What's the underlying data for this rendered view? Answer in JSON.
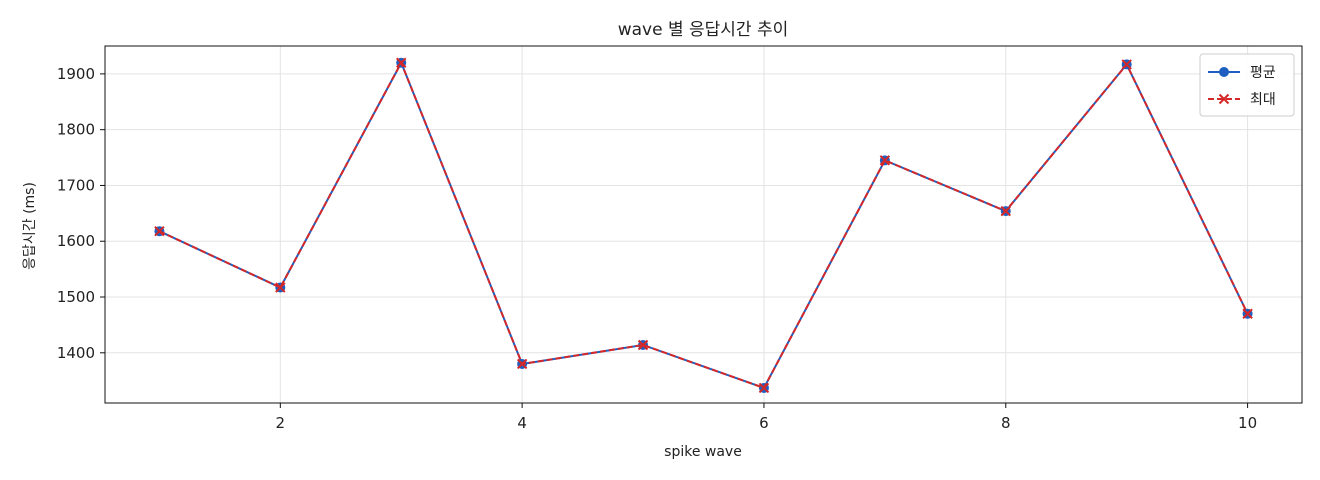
{
  "chart_data": {
    "type": "line",
    "title": "wave 별 응답시간 추이",
    "xlabel": "spike wave",
    "ylabel": "응답시간 (ms)",
    "x": [
      1,
      2,
      3,
      4,
      5,
      6,
      7,
      8,
      9,
      10
    ],
    "xlim": [
      0.55,
      10.45
    ],
    "ylim": [
      1310,
      1950
    ],
    "xticks": [
      2,
      4,
      6,
      8,
      10
    ],
    "yticks": [
      1400,
      1500,
      1600,
      1700,
      1800,
      1900
    ],
    "grid": true,
    "legend_position": "top-right",
    "series": [
      {
        "name": "평균",
        "color": "#1f5fbf",
        "marker": "circle",
        "linestyle": "solid",
        "values": [
          1618,
          1517,
          1920,
          1380,
          1414,
          1337,
          1745,
          1654,
          1917,
          1470
        ]
      },
      {
        "name": "최대",
        "color": "#d62728",
        "marker": "x",
        "linestyle": "dashed",
        "values": [
          1618,
          1517,
          1920,
          1380,
          1414,
          1337,
          1745,
          1654,
          1917,
          1470
        ]
      }
    ]
  }
}
